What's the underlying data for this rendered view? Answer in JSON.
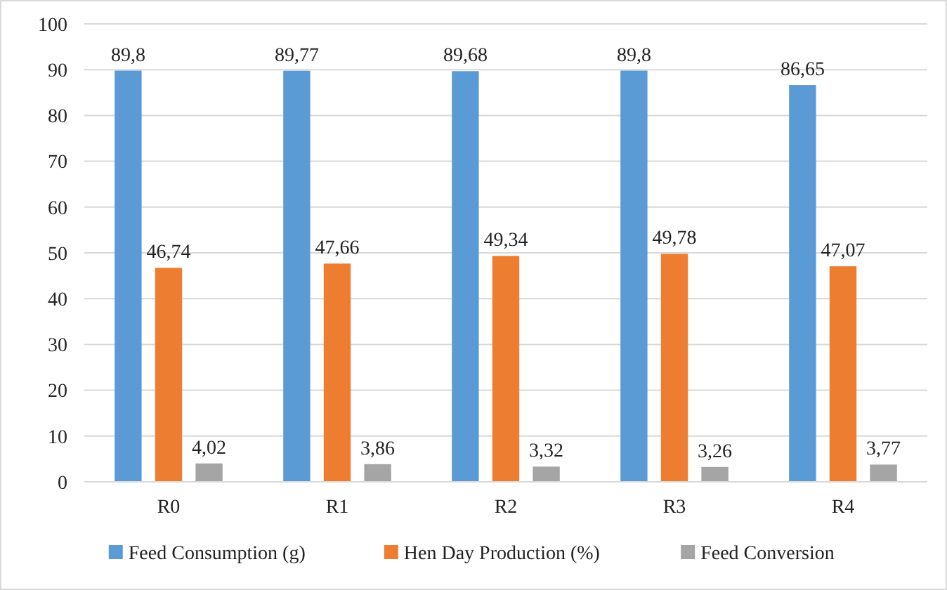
{
  "chart_data": {
    "type": "bar",
    "categories": [
      "R0",
      "R1",
      "R2",
      "R3",
      "R4"
    ],
    "series": [
      {
        "name": "Feed Consumption (g)",
        "color": "#5b9bd5",
        "values": [
          89.8,
          89.77,
          89.68,
          89.8,
          86.65
        ],
        "value_labels": [
          "89,8",
          "89,77",
          "89,68",
          "89,8",
          "86,65"
        ]
      },
      {
        "name": "Hen Day Production (%)",
        "color": "#ed7d31",
        "values": [
          46.74,
          47.66,
          49.34,
          49.78,
          47.07
        ],
        "value_labels": [
          "46,74",
          "47,66",
          "49,34",
          "49,78",
          "47,07"
        ]
      },
      {
        "name": "Feed Conversion",
        "color": "#a5a5a5",
        "values": [
          4.02,
          3.86,
          3.32,
          3.26,
          3.77
        ],
        "value_labels": [
          "4,02",
          "3,86",
          "3,32",
          "3,26",
          "3,77"
        ]
      }
    ],
    "ylim": [
      0,
      100
    ],
    "yticks": [
      0,
      10,
      20,
      30,
      40,
      50,
      60,
      70,
      80,
      90,
      100
    ],
    "grid": "y",
    "legend": "bottom"
  }
}
